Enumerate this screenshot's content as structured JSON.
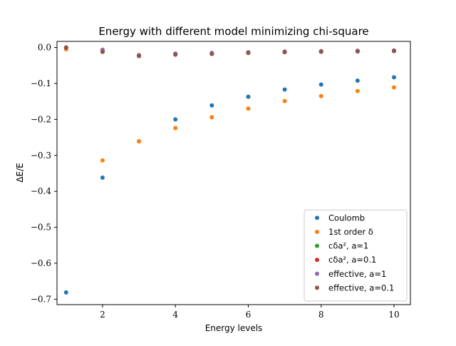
{
  "chart_data": {
    "type": "scatter",
    "title": "Energy with different model minimizing chi-square",
    "xlabel": "Energy levels",
    "ylabel": "ΔE/E",
    "xlim": [
      0.75,
      10.45
    ],
    "ylim": [
      -0.715,
      0.017
    ],
    "xticks": [
      2,
      4,
      6,
      8,
      10
    ],
    "xtick_labels": [
      "2",
      "4",
      "6",
      "8",
      "10"
    ],
    "yticks": [
      0.0,
      -0.1,
      -0.2,
      -0.3,
      -0.4,
      -0.5,
      -0.6,
      -0.7
    ],
    "ytick_labels": [
      "0.0",
      "−0.1",
      "−0.2",
      "−0.3",
      "−0.4",
      "−0.5",
      "−0.6",
      "−0.7"
    ],
    "grid": false,
    "legend_position": "lower-right",
    "x": [
      1,
      2,
      3,
      4,
      5,
      6,
      7,
      8,
      9,
      10
    ],
    "series": [
      {
        "name": "Coulomb",
        "color": "#1f77b4",
        "values": [
          -0.681,
          -0.362,
          -0.261,
          -0.2,
          -0.161,
          -0.137,
          -0.117,
          -0.103,
          -0.092,
          -0.083
        ]
      },
      {
        "name": "1st order δ",
        "color": "#ff7f0e",
        "values": [
          -0.005,
          -0.314,
          -0.261,
          -0.224,
          -0.194,
          -0.17,
          -0.149,
          -0.135,
          -0.121,
          -0.111
        ]
      },
      {
        "name": "cδa², a=1",
        "color": "#2ca02c",
        "values": [
          0.0,
          -0.01,
          -0.022,
          -0.018,
          -0.017,
          -0.014,
          -0.012,
          -0.011,
          -0.01,
          -0.009
        ]
      },
      {
        "name": "cδa², a=0.1",
        "color": "#d62728",
        "values": [
          0.0,
          -0.012,
          -0.023,
          -0.019,
          -0.017,
          -0.015,
          -0.013,
          -0.011,
          -0.01,
          -0.009
        ]
      },
      {
        "name": "effective, a=1",
        "color": "#9467bd",
        "values": [
          0.0,
          -0.006,
          -0.021,
          -0.017,
          -0.015,
          -0.013,
          -0.011,
          -0.01,
          -0.009,
          -0.008
        ]
      },
      {
        "name": "effective, a=0.1",
        "color": "#8c564b",
        "values": [
          0.0,
          -0.012,
          -0.024,
          -0.02,
          -0.018,
          -0.015,
          -0.013,
          -0.012,
          -0.011,
          -0.01
        ]
      }
    ]
  }
}
